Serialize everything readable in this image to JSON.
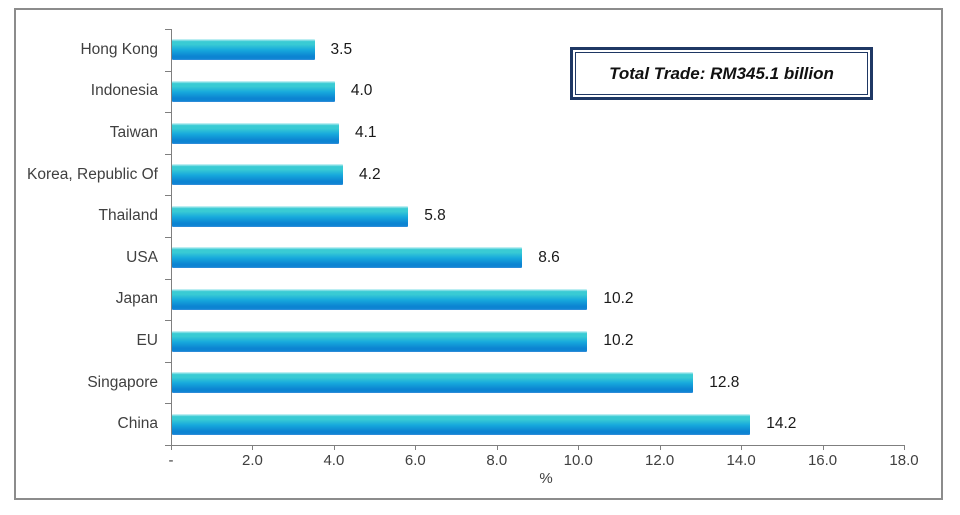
{
  "chart_data": {
    "type": "bar",
    "orientation": "horizontal",
    "annotation": "Total Trade: RM345.1 billion",
    "categories": [
      "Hong Kong",
      "Indonesia",
      "Taiwan",
      "Korea, Republic Of",
      "Thailand",
      "USA",
      "Japan",
      "EU",
      "Singapore",
      "China"
    ],
    "values": [
      3.5,
      4.0,
      4.1,
      4.2,
      5.8,
      8.6,
      10.2,
      10.2,
      12.8,
      14.2
    ],
    "value_labels": [
      "3.5",
      "4.0",
      "4.1",
      "4.2",
      "5.8",
      "8.6",
      "10.2",
      "10.2",
      "12.8",
      "14.2"
    ],
    "xlabel": "%",
    "xlim": [
      0,
      18
    ],
    "x_tick_values": [
      0,
      2,
      4,
      6,
      8,
      10,
      12,
      14,
      16,
      18
    ],
    "x_tick_labels": [
      "-",
      "2.0",
      "4.0",
      "6.0",
      "8.0",
      "10.0",
      "12.0",
      "14.0",
      "16.0",
      "18.0"
    ],
    "grid": false,
    "legend": false,
    "colors": {
      "bar_gradient_top": "#DDF7F9",
      "bar_gradient_upper": "#39CBD4",
      "bar_gradient_mid": "#17A9DC",
      "bar_gradient_lower": "#0C84D2",
      "bar_gradient_bottom": "#3B8FDC",
      "axis": "#7F7F7F",
      "frame_border": "#8C8C8C",
      "annotation_border": "#1F3864",
      "label_text": "#404040",
      "value_text": "#1A1A1A"
    }
  }
}
